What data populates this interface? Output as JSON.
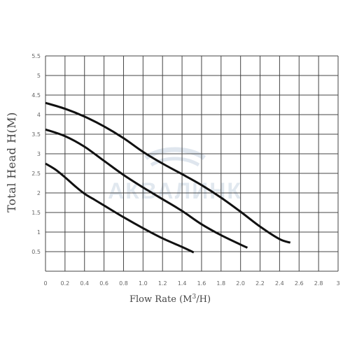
{
  "chart_data": {
    "type": "line",
    "title": "",
    "xlabel": "Flow Rate (M³/H)",
    "xlabel_parts": {
      "before": "Flow Rate (M",
      "sup": "3",
      "after": "/H)"
    },
    "ylabel": "Total Head H(M)",
    "xlim": [
      0,
      3
    ],
    "ylim": [
      0,
      5.5
    ],
    "x_tick_labels": [
      "0",
      "0.2",
      "0.4",
      "0.6",
      "0.8",
      "1.0",
      "1.2",
      "1.4",
      "1.6",
      "1.8",
      "2.0",
      "2.2",
      "2.4",
      "2.6",
      "2.8",
      "3"
    ],
    "y_tick_labels": [
      "0.5",
      "1",
      "1.5",
      "2",
      "2.5",
      "3",
      "3.5",
      "4",
      "4.5",
      "5",
      "5.5"
    ],
    "grid": true,
    "series": [
      {
        "x": [
          0,
          0.1,
          0.2,
          0.3,
          0.4,
          0.5,
          0.6,
          0.8,
          1.0,
          1.2,
          1.4,
          1.52
        ],
        "y": [
          2.75,
          2.6,
          2.4,
          2.18,
          1.98,
          1.83,
          1.68,
          1.38,
          1.1,
          0.84,
          0.62,
          0.48
        ]
      },
      {
        "x": [
          0,
          0.2,
          0.4,
          0.6,
          0.8,
          1.0,
          1.2,
          1.4,
          1.6,
          1.8,
          2.0,
          2.07
        ],
        "y": [
          3.62,
          3.45,
          3.18,
          2.82,
          2.46,
          2.14,
          1.84,
          1.54,
          1.2,
          0.92,
          0.68,
          0.6
        ]
      },
      {
        "x": [
          0,
          0.2,
          0.4,
          0.6,
          0.8,
          1.0,
          1.2,
          1.4,
          1.6,
          1.8,
          2.0,
          2.2,
          2.4,
          2.51
        ],
        "y": [
          4.3,
          4.15,
          3.95,
          3.7,
          3.4,
          3.05,
          2.75,
          2.48,
          2.2,
          1.88,
          1.52,
          1.14,
          0.82,
          0.73
        ]
      }
    ],
    "line_color": "#111111",
    "grid_color": "#444444",
    "watermark_text": "АКВАЛИНК",
    "watermark_color": "#c9d6e2"
  }
}
